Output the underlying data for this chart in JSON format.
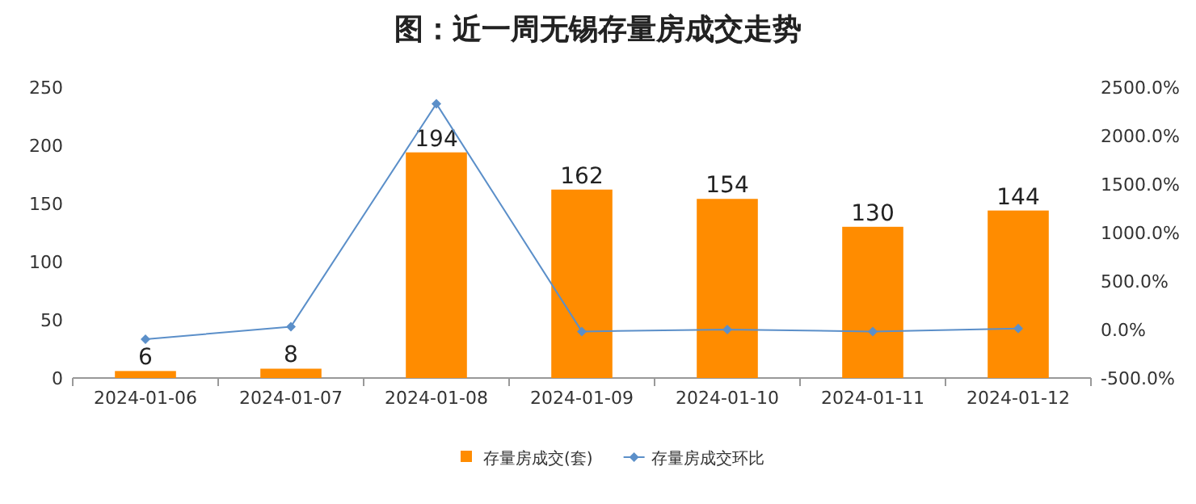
{
  "chart_data": {
    "type": "bar",
    "title": "图：近一周无锡存量房成交走势",
    "categories": [
      "2024-01-06",
      "2024-01-07",
      "2024-01-08",
      "2024-01-09",
      "2024-01-10",
      "2024-01-11",
      "2024-01-12"
    ],
    "series": [
      {
        "name": "存量房成交(套)",
        "color": "#ff8c00",
        "values": [
          6,
          8,
          194,
          162,
          154,
          130,
          144
        ],
        "value_labels": [
          "6",
          "8",
          "194",
          "162",
          "154",
          "130",
          "144"
        ]
      },
      {
        "name": "存量房成交环比",
        "type": "line",
        "axis": "y2",
        "color": "#5b8fc9",
        "marker": "diamond",
        "values": [
          -100,
          30,
          2330,
          -20,
          0,
          -20,
          10
        ]
      }
    ],
    "ylim": [
      0,
      250
    ],
    "yticks": [
      0,
      50,
      100,
      150,
      200,
      250
    ],
    "y2lim": [
      -500,
      2500
    ],
    "y2ticks": [
      {
        "value": -500,
        "label": "-500.0%"
      },
      {
        "value": 0,
        "label": "0.0%"
      },
      {
        "value": 500,
        "label": "500.0%"
      },
      {
        "value": 1000,
        "label": "1000.0%"
      },
      {
        "value": 1500,
        "label": "1500.0%"
      },
      {
        "value": 2000,
        "label": "2000.0%"
      },
      {
        "value": 2500,
        "label": "2500.0%"
      }
    ],
    "legend": "bottom"
  }
}
